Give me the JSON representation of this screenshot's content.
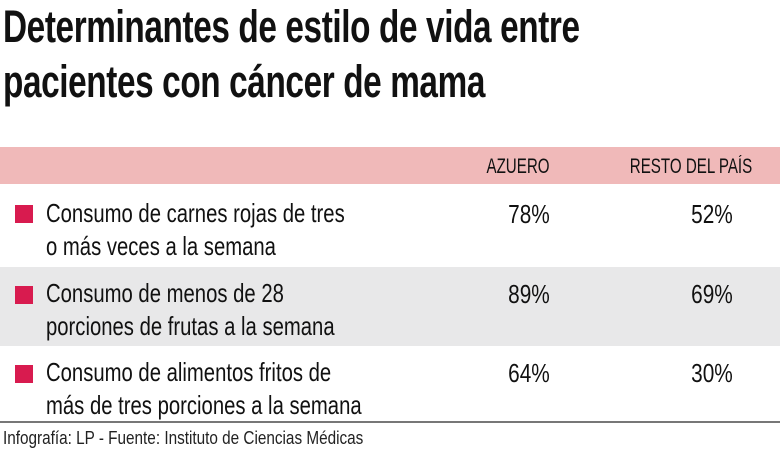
{
  "title_lines": [
    "Determinantes de estilo de vida entre",
    "pacientes con cáncer de mama"
  ],
  "colors": {
    "header_band": "#f0b9b9",
    "bullet": "#d81b4f",
    "alt_row": "#e8e8e9"
  },
  "chart_data": {
    "type": "table",
    "title": "Determinantes de estilo de vida entre pacientes con cáncer de mama",
    "columns": [
      "",
      "AZUERO",
      "RESTO DEL PAÍS"
    ],
    "rows": [
      {
        "label_lines": [
          "Consumo de carnes rojas de tres",
          "o más veces a la semana"
        ],
        "azuero": "78%",
        "resto": "52%"
      },
      {
        "label_lines": [
          "Consumo de menos de 28",
          "porciones de frutas a la semana"
        ],
        "azuero": "89%",
        "resto": "69%"
      },
      {
        "label_lines": [
          "Consumo de alimentos fritos de",
          "más de tres porciones a la semana"
        ],
        "azuero": "64%",
        "resto": "30%"
      }
    ]
  },
  "footer": "Infografía: LP - Fuente: Instituto de Ciencias Médicas"
}
